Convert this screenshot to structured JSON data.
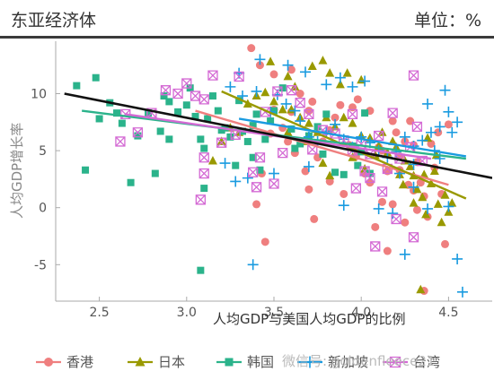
{
  "header": {
    "title": "东亚经济体",
    "unit": "单位：%"
  },
  "watermark": "微信号: goldenfleece21",
  "chart_data": {
    "type": "scatter",
    "xlabel": "人均GDP与美国人均GDP的比例",
    "ylabel": "人均GDP增长率",
    "xlim": [
      2.25,
      4.75
    ],
    "ylim": [
      -8.2,
      14.6
    ],
    "xticks": [
      2.5,
      3.0,
      3.5,
      4.0,
      4.5
    ],
    "xtick_labels": [
      "2.5",
      "3.0",
      "3.5",
      "4.0",
      "4.5"
    ],
    "yticks": [
      10,
      5,
      0,
      -5
    ],
    "ytick_labels": [
      "10",
      "5",
      "0",
      "-5"
    ],
    "grid": false,
    "legend_position": "bottom",
    "overall_fit": {
      "color": "#111111",
      "from": [
        2.3,
        10.0
      ],
      "to": [
        4.75,
        2.6
      ]
    },
    "series": [
      {
        "name": "香港",
        "marker": "circle",
        "color": "#ef7f7f",
        "fit": {
          "from": [
            3.05,
            8.5
          ],
          "to": [
            4.5,
            2.0
          ]
        },
        "points": [
          [
            3.37,
            14
          ],
          [
            3.42,
            12.5
          ],
          [
            3.5,
            11.7
          ],
          [
            3.6,
            12.1
          ],
          [
            3.65,
            10
          ],
          [
            3.7,
            8.5
          ],
          [
            3.72,
            9.3
          ],
          [
            3.5,
            8.6
          ],
          [
            3.55,
            7
          ],
          [
            3.6,
            8.4
          ],
          [
            3.48,
            6.5
          ],
          [
            3.43,
            3
          ],
          [
            3.4,
            0.3
          ],
          [
            3.45,
            -3
          ],
          [
            3.58,
            5.8
          ],
          [
            3.62,
            4.8
          ],
          [
            3.68,
            3.2
          ],
          [
            3.7,
            1.6
          ],
          [
            3.73,
            -1
          ],
          [
            3.78,
            5.8
          ],
          [
            3.82,
            6.8
          ],
          [
            3.85,
            7.9
          ],
          [
            3.88,
            9
          ],
          [
            3.93,
            5.5
          ],
          [
            3.95,
            8.8
          ],
          [
            3.97,
            4.5
          ],
          [
            4.02,
            3
          ],
          [
            4.05,
            8.5
          ],
          [
            4.1,
            5.3
          ],
          [
            4.15,
            3.2
          ],
          [
            4.18,
            7.6
          ],
          [
            4.2,
            6.6
          ],
          [
            4.22,
            4.5
          ],
          [
            4.25,
            5.8
          ],
          [
            4.27,
            2
          ],
          [
            4.28,
            7.6
          ],
          [
            4.3,
            5.5
          ],
          [
            4.32,
            4
          ],
          [
            4.34,
            2.2
          ],
          [
            4.36,
            1
          ],
          [
            4.38,
            -0.8
          ],
          [
            4.4,
            5.6
          ],
          [
            4.42,
            3.5
          ],
          [
            4.44,
            6.6
          ],
          [
            4.46,
            1.2
          ],
          [
            4.48,
            -3.2
          ],
          [
            4.5,
            7.3
          ],
          [
            4.36,
            -7.3
          ],
          [
            4.15,
            -3.8
          ],
          [
            4.08,
            -1.7
          ],
          [
            4.12,
            0.5
          ],
          [
            4.25,
            -1.3
          ],
          [
            4.3,
            1.5
          ],
          [
            4.05,
            2.2
          ],
          [
            3.9,
            1.2
          ],
          [
            3.82,
            2.3
          ],
          [
            4.18,
            0.3
          ],
          [
            4.32,
            -0.2
          ],
          [
            3.98,
            9.5
          ],
          [
            4.12,
            5
          ],
          [
            3.75,
            4.4
          ],
          [
            4.22,
            3.3
          ]
        ]
      },
      {
        "name": "日本",
        "marker": "triangle",
        "color": "#999900",
        "fit": {
          "from": [
            3.2,
            10.2
          ],
          "to": [
            4.6,
            0.8
          ]
        },
        "points": [
          [
            3.48,
            12.8
          ],
          [
            3.58,
            11.5
          ],
          [
            3.62,
            10.6
          ],
          [
            3.72,
            12.4
          ],
          [
            3.78,
            12.9
          ],
          [
            3.82,
            11.8
          ],
          [
            3.88,
            10.8
          ],
          [
            3.92,
            11.8
          ],
          [
            4.0,
            11.2
          ],
          [
            3.45,
            10.1
          ],
          [
            3.5,
            9.3
          ],
          [
            3.55,
            8.6
          ],
          [
            3.6,
            8.6
          ],
          [
            3.65,
            7.9
          ],
          [
            3.7,
            7.4
          ],
          [
            3.75,
            6.6
          ],
          [
            3.8,
            7.9
          ],
          [
            3.85,
            7.1
          ],
          [
            3.9,
            7.9
          ],
          [
            3.95,
            7.4
          ],
          [
            4.0,
            6.3
          ],
          [
            4.05,
            6.1
          ],
          [
            4.1,
            5.4
          ],
          [
            4.15,
            4.8
          ],
          [
            4.2,
            5.3
          ],
          [
            4.25,
            4.1
          ],
          [
            4.28,
            3.6
          ],
          [
            4.3,
            2.8
          ],
          [
            4.32,
            1.6
          ],
          [
            4.35,
            0.9
          ],
          [
            4.37,
            -0.6
          ],
          [
            4.4,
            2.1
          ],
          [
            4.42,
            3.2
          ],
          [
            4.44,
            0.3
          ],
          [
            4.46,
            -1.3
          ],
          [
            4.48,
            1.1
          ],
          [
            4.5,
            -0.4
          ],
          [
            4.52,
            0.4
          ],
          [
            3.15,
            4.1
          ],
          [
            3.2,
            5.8
          ],
          [
            3.25,
            7.0
          ],
          [
            3.3,
            6.6
          ],
          [
            3.35,
            9.1
          ],
          [
            3.4,
            9.8
          ],
          [
            3.58,
            6.6
          ],
          [
            3.68,
            5.8
          ],
          [
            3.78,
            3.9
          ],
          [
            3.82,
            2.8
          ],
          [
            3.95,
            4.4
          ],
          [
            4.02,
            3.4
          ],
          [
            4.08,
            4.6
          ],
          [
            4.12,
            6.6
          ],
          [
            4.18,
            5.8
          ],
          [
            4.22,
            2.9
          ],
          [
            4.34,
            -7.2
          ],
          [
            4.38,
            6.1
          ],
          [
            4.43,
            4.6
          ],
          [
            4.36,
            2.9
          ],
          [
            4.24,
            2.0
          ],
          [
            4.3,
            0.4
          ]
        ]
      },
      {
        "name": "韩国",
        "marker": "square",
        "color": "#2bb38b",
        "fit": {
          "from": [
            2.4,
            8.5
          ],
          "to": [
            4.6,
            4.3
          ]
        },
        "points": [
          [
            2.37,
            10.7
          ],
          [
            2.48,
            11.4
          ],
          [
            2.42,
            3.3
          ],
          [
            2.5,
            7.8
          ],
          [
            2.56,
            9.2
          ],
          [
            2.6,
            8.3
          ],
          [
            2.63,
            7.4
          ],
          [
            2.68,
            2.2
          ],
          [
            2.72,
            6.3
          ],
          [
            2.78,
            8.3
          ],
          [
            2.82,
            3.0
          ],
          [
            2.87,
            9.8
          ],
          [
            2.9,
            9.3
          ],
          [
            2.95,
            8.4
          ],
          [
            3.0,
            9.0
          ],
          [
            3.02,
            10.5
          ],
          [
            3.05,
            8.0
          ],
          [
            3.08,
            6.0
          ],
          [
            3.1,
            5.2
          ],
          [
            3.12,
            7.8
          ],
          [
            3.15,
            9.8
          ],
          [
            3.18,
            8.5
          ],
          [
            3.2,
            6.8
          ],
          [
            3.22,
            7.0
          ],
          [
            3.25,
            6.2
          ],
          [
            3.28,
            3.7
          ],
          [
            3.3,
            9.4
          ],
          [
            3.32,
            6.7
          ],
          [
            3.35,
            5.8
          ],
          [
            3.38,
            7.2
          ],
          [
            3.4,
            8.2
          ],
          [
            3.42,
            3.3
          ],
          [
            3.45,
            6.0
          ],
          [
            3.48,
            7.6
          ],
          [
            3.5,
            8.5
          ],
          [
            3.55,
            10.5
          ],
          [
            3.6,
            6.9
          ],
          [
            3.65,
            5.6
          ],
          [
            3.7,
            6.3
          ],
          [
            3.75,
            7.1
          ],
          [
            3.8,
            8.2
          ],
          [
            3.85,
            3.1
          ],
          [
            3.9,
            2.9
          ],
          [
            3.95,
            5.4
          ],
          [
            4.0,
            4.9
          ],
          [
            4.05,
            3.0
          ],
          [
            3.08,
            -5.5
          ],
          [
            2.9,
            6.0
          ],
          [
            3.1,
            1.7
          ],
          [
            3.38,
            4.4
          ],
          [
            3.78,
            4.7
          ],
          [
            3.98,
            3.7
          ],
          [
            4.02,
            8.3
          ],
          [
            3.62,
            5.2
          ],
          [
            2.85,
            6.7
          ]
        ]
      },
      {
        "name": "新加坡",
        "marker": "plus",
        "color": "#1a9be0",
        "fit": {
          "from": [
            3.3,
            7.8
          ],
          "to": [
            4.6,
            4.5
          ]
        },
        "points": [
          [
            3.42,
            13
          ],
          [
            3.58,
            12.5
          ],
          [
            3.3,
            11.8
          ],
          [
            3.68,
            11.9
          ],
          [
            3.8,
            10.8
          ],
          [
            3.88,
            11.4
          ],
          [
            3.95,
            10.6
          ],
          [
            4.02,
            11.1
          ],
          [
            3.25,
            10.6
          ],
          [
            3.32,
            9.8
          ],
          [
            3.4,
            10.2
          ],
          [
            3.48,
            8.4
          ],
          [
            3.52,
            9.9
          ],
          [
            3.57,
            9.1
          ],
          [
            3.62,
            8.5
          ],
          [
            3.65,
            7.6
          ],
          [
            3.7,
            6.2
          ],
          [
            3.75,
            5.8
          ],
          [
            3.8,
            6.7
          ],
          [
            3.85,
            7.3
          ],
          [
            3.9,
            6.0
          ],
          [
            3.95,
            5.3
          ],
          [
            4.0,
            6.2
          ],
          [
            4.05,
            5.7
          ],
          [
            4.1,
            5.0
          ],
          [
            4.15,
            4.4
          ],
          [
            4.2,
            4.9
          ],
          [
            4.25,
            6.2
          ],
          [
            4.3,
            5.4
          ],
          [
            4.35,
            5.9
          ],
          [
            4.4,
            6.6
          ],
          [
            4.45,
            7.1
          ],
          [
            4.48,
            10.3
          ],
          [
            4.5,
            8.4
          ],
          [
            4.52,
            6.6
          ],
          [
            4.55,
            7.5
          ],
          [
            4.38,
            9.1
          ],
          [
            4.42,
            5.0
          ],
          [
            4.3,
            3.8
          ],
          [
            4.22,
            3.0
          ],
          [
            4.1,
            -0.1
          ],
          [
            4.18,
            -0.5
          ],
          [
            4.38,
            -0.1
          ],
          [
            4.5,
            0.1
          ],
          [
            4.55,
            -4.5
          ],
          [
            4.58,
            -7.4
          ],
          [
            4.25,
            -4.1
          ],
          [
            3.38,
            -5.0
          ],
          [
            3.22,
            3.9
          ],
          [
            3.28,
            2.3
          ],
          [
            3.35,
            2.6
          ],
          [
            3.5,
            3.0
          ],
          [
            3.9,
            0.2
          ],
          [
            3.7,
            3.6
          ],
          [
            4.3,
            1.8
          ],
          [
            4.45,
            4.3
          ]
        ]
      },
      {
        "name": "台湾",
        "marker": "boxed-x",
        "color": "#d46ad4",
        "fit": {
          "from": [
            2.65,
            8.2
          ],
          "to": [
            4.4,
            4.3
          ]
        },
        "points": [
          [
            2.65,
            8.2
          ],
          [
            2.72,
            6.6
          ],
          [
            2.62,
            5.8
          ],
          [
            2.8,
            8.3
          ],
          [
            2.88,
            10.3
          ],
          [
            2.95,
            10.0
          ],
          [
            3.0,
            10.9
          ],
          [
            3.05,
            9.8
          ],
          [
            3.1,
            9.5
          ],
          [
            3.15,
            11.6
          ],
          [
            3.3,
            11.5
          ],
          [
            3.45,
            8.4
          ],
          [
            3.52,
            10.2
          ],
          [
            3.6,
            10.3
          ],
          [
            3.65,
            9.2
          ],
          [
            3.7,
            8.2
          ],
          [
            3.78,
            6.8
          ],
          [
            3.85,
            6.5
          ],
          [
            3.9,
            5.9
          ],
          [
            3.95,
            5.0
          ],
          [
            4.0,
            5.6
          ],
          [
            4.05,
            4.7
          ],
          [
            4.1,
            6.3
          ],
          [
            4.15,
            3.4
          ],
          [
            4.22,
            4.3
          ],
          [
            4.28,
            5.3
          ],
          [
            4.3,
            11.6
          ],
          [
            4.32,
            7.1
          ],
          [
            4.35,
            4.1
          ],
          [
            3.42,
            4.4
          ],
          [
            3.5,
            2.1
          ],
          [
            3.38,
            3.1
          ],
          [
            3.28,
            6.4
          ],
          [
            3.2,
            5.7
          ],
          [
            3.1,
            4.4
          ],
          [
            3.08,
            0.7
          ],
          [
            3.1,
            3.0
          ],
          [
            3.4,
            1.8
          ],
          [
            3.72,
            5.1
          ],
          [
            4.02,
            3.2
          ],
          [
            4.12,
            1.4
          ],
          [
            4.08,
            -3.4
          ],
          [
            4.2,
            -1.0
          ],
          [
            4.3,
            -2.6
          ],
          [
            4.05,
            2.6
          ],
          [
            3.97,
            1.7
          ],
          [
            3.55,
            4.8
          ],
          [
            3.95,
            8.2
          ],
          [
            4.18,
            8.3
          ]
        ]
      }
    ]
  }
}
